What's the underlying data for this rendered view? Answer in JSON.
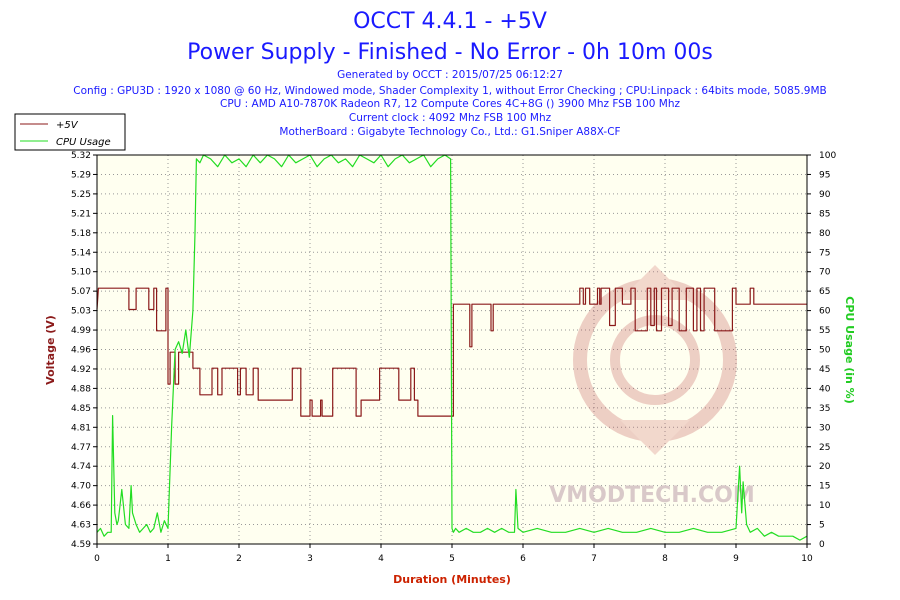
{
  "header": {
    "title": "OCCT 4.4.1 - +5V",
    "subtitle": "Power Supply - Finished - No Error - 0h 10m 00s",
    "info_lines": [
      "Generated by OCCT : 2015/07/25 06:12:27",
      "Config : GPU3D : 1920 x 1080 @ 60 Hz, Windowed mode, Shader Complexity 1, without Error Checking ; CPU:Linpack : 64bits mode, 5085.9MB",
      "CPU : AMD A10-7870K Radeon R7, 12 Compute Cores 4C+8G () 3900 Mhz FSB 100 Mhz",
      "Current clock : 4092 Mhz FSB 100 Mhz",
      "MotherBoard : Gigabyte Technology Co., Ltd.: G1.Sniper A88X-CF"
    ]
  },
  "watermark": "VMODTECH.COM",
  "colors": {
    "voltage": "#8b1a1a",
    "cpu": "#22dd22",
    "title": "#1a1aff",
    "plot_bg": "#fffff0",
    "x_label": "#cc2200"
  },
  "chart_data": {
    "type": "line",
    "xlabel": "Duration (Minutes)",
    "ylabel_left": "Voltage (V)",
    "ylabel_right": "CPU Usage (in %)",
    "xlim": [
      0,
      10
    ],
    "ylim_left": [
      4.59,
      5.32
    ],
    "ylim_right": [
      0,
      100
    ],
    "x_ticks": [
      "0",
      "1",
      "2",
      "3",
      "4",
      "5",
      "6",
      "7",
      "8",
      "9",
      "10"
    ],
    "y_ticks_left": [
      "4.59",
      "4.63",
      "4.66",
      "4.70",
      "4.74",
      "4.77",
      "4.81",
      "4.85",
      "4.88",
      "4.92",
      "4.96",
      "4.99",
      "5.03",
      "5.07",
      "5.10",
      "5.14",
      "5.18",
      "5.21",
      "5.25",
      "5.29",
      "5.32"
    ],
    "y_ticks_right": [
      "0",
      "5",
      "10",
      "15",
      "20",
      "25",
      "30",
      "35",
      "40",
      "45",
      "50",
      "55",
      "60",
      "65",
      "70",
      "75",
      "80",
      "85",
      "90",
      "95",
      "100"
    ],
    "grid": true,
    "legend_position": "top-left",
    "series": [
      {
        "name": "+5V",
        "axis": "left",
        "x": [
          0,
          0.02,
          0.1,
          0.1,
          0.45,
          0.45,
          0.55,
          0.55,
          0.73,
          0.73,
          0.8,
          0.8,
          0.84,
          0.84,
          0.97,
          0.97,
          1.0,
          1.0,
          1.03,
          1.03,
          1.1,
          1.1,
          1.15,
          1.15,
          1.35,
          1.35,
          1.45,
          1.45,
          1.62,
          1.62,
          1.7,
          1.7,
          1.76,
          1.76,
          1.98,
          1.98,
          2.02,
          2.02,
          2.1,
          2.1,
          2.2,
          2.2,
          2.27,
          2.27,
          2.48,
          2.48,
          2.55,
          2.55,
          2.75,
          2.75,
          2.87,
          2.87,
          3.0,
          3.0,
          3.03,
          3.03,
          3.15,
          3.15,
          3.17,
          3.17,
          3.32,
          3.32,
          3.65,
          3.65,
          3.72,
          3.72,
          3.98,
          3.98,
          4.02,
          4.02,
          4.25,
          4.25,
          4.3,
          4.3,
          4.42,
          4.42,
          4.47,
          4.47,
          4.52,
          4.52,
          4.97,
          4.97,
          5.02,
          5.02,
          5.05,
          5.05,
          5.25,
          5.25,
          5.28,
          5.28,
          5.3,
          5.3,
          5.55,
          5.55,
          5.58,
          5.58,
          6.8,
          6.8,
          6.85,
          6.85,
          6.88,
          6.88,
          6.94,
          6.94,
          6.97,
          6.97,
          7.05,
          7.05,
          7.08,
          7.08,
          7.1,
          7.1,
          7.22,
          7.22,
          7.3,
          7.3,
          7.4,
          7.4,
          7.52,
          7.52,
          7.58,
          7.58,
          7.75,
          7.75,
          7.8,
          7.8,
          7.85,
          7.85,
          7.88,
          7.88,
          7.95,
          7.95,
          8.05,
          8.05,
          8.1,
          8.1,
          8.2,
          8.2,
          8.3,
          8.3,
          8.4,
          8.4,
          8.45,
          8.45,
          8.5,
          8.5,
          8.55,
          8.55,
          8.7,
          8.7,
          8.95,
          8.95,
          9.0,
          9.0,
          9.2,
          9.2,
          9.25,
          9.25,
          10.0
        ],
        "values": [
          5.03,
          5.07,
          5.07,
          5.07,
          5.07,
          5.03,
          5.03,
          5.07,
          5.07,
          5.03,
          5.03,
          5.07,
          5.07,
          4.99,
          4.99,
          5.07,
          5.07,
          4.89,
          4.89,
          4.95,
          4.95,
          4.89,
          4.89,
          4.95,
          4.95,
          4.92,
          4.92,
          4.87,
          4.87,
          4.92,
          4.92,
          4.87,
          4.87,
          4.92,
          4.92,
          4.87,
          4.87,
          4.92,
          4.92,
          4.87,
          4.87,
          4.92,
          4.92,
          4.86,
          4.86,
          4.86,
          4.86,
          4.86,
          4.86,
          4.92,
          4.92,
          4.83,
          4.83,
          4.86,
          4.86,
          4.83,
          4.83,
          4.86,
          4.86,
          4.83,
          4.83,
          4.92,
          4.92,
          4.83,
          4.83,
          4.86,
          4.86,
          4.92,
          4.92,
          4.92,
          4.92,
          4.86,
          4.86,
          4.86,
          4.86,
          4.92,
          4.92,
          4.86,
          4.86,
          4.83,
          4.83,
          4.83,
          4.83,
          5.04,
          5.04,
          5.04,
          5.04,
          4.96,
          4.96,
          5.04,
          5.04,
          5.04,
          5.04,
          4.99,
          4.99,
          5.04,
          5.04,
          5.07,
          5.07,
          5.04,
          5.04,
          5.07,
          5.07,
          5.04,
          5.04,
          5.04,
          5.04,
          5.07,
          5.07,
          5.04,
          5.04,
          5.07,
          5.07,
          5.0,
          5.0,
          5.07,
          5.07,
          5.04,
          5.04,
          5.07,
          5.07,
          4.99,
          4.99,
          5.07,
          5.07,
          5.0,
          5.0,
          5.07,
          5.07,
          4.99,
          4.99,
          5.07,
          5.07,
          5.0,
          5.0,
          5.07,
          5.07,
          4.99,
          4.99,
          5.07,
          5.07,
          4.99,
          4.99,
          5.07,
          5.07,
          4.99,
          4.99,
          5.07,
          5.07,
          4.99,
          4.99,
          5.07,
          5.07,
          5.04,
          5.04,
          5.07,
          5.07,
          5.04,
          5.04
        ]
      },
      {
        "name": "CPU Usage",
        "axis": "right",
        "x": [
          0,
          0.05,
          0.1,
          0.15,
          0.2,
          0.22,
          0.25,
          0.28,
          0.3,
          0.35,
          0.4,
          0.45,
          0.48,
          0.5,
          0.55,
          0.6,
          0.65,
          0.7,
          0.75,
          0.8,
          0.85,
          0.9,
          0.95,
          1.0,
          1.05,
          1.1,
          1.15,
          1.2,
          1.25,
          1.3,
          1.35,
          1.38,
          1.4,
          1.45,
          1.5,
          1.6,
          1.7,
          1.8,
          1.9,
          2.0,
          2.1,
          2.2,
          2.3,
          2.4,
          2.5,
          2.6,
          2.7,
          2.8,
          2.9,
          3.0,
          3.1,
          3.2,
          3.3,
          3.4,
          3.5,
          3.6,
          3.7,
          3.8,
          3.9,
          4.0,
          4.1,
          4.2,
          4.3,
          4.4,
          4.5,
          4.6,
          4.7,
          4.8,
          4.9,
          4.98,
          5.0,
          5.02,
          5.05,
          5.1,
          5.2,
          5.3,
          5.4,
          5.5,
          5.6,
          5.7,
          5.8,
          5.88,
          5.9,
          5.93,
          6.0,
          6.2,
          6.4,
          6.6,
          6.8,
          7.0,
          7.2,
          7.4,
          7.6,
          7.8,
          8.0,
          8.2,
          8.4,
          8.6,
          8.8,
          9.0,
          9.05,
          9.08,
          9.1,
          9.15,
          9.2,
          9.3,
          9.4,
          9.5,
          9.6,
          9.7,
          9.8,
          9.9,
          10.0
        ],
        "values": [
          3,
          4,
          2,
          3,
          3,
          33,
          8,
          5,
          6,
          14,
          5,
          4,
          15,
          8,
          5,
          3,
          4,
          5,
          3,
          4,
          8,
          3,
          6,
          4,
          30,
          50,
          52,
          49,
          55,
          48,
          60,
          80,
          99,
          98,
          100,
          99,
          97,
          100,
          98,
          99,
          97,
          100,
          98,
          100,
          99,
          97,
          100,
          98,
          99,
          100,
          97,
          99,
          100,
          98,
          99,
          97,
          100,
          99,
          98,
          100,
          97,
          99,
          100,
          98,
          99,
          100,
          97,
          99,
          100,
          99,
          4,
          3,
          4,
          3,
          4,
          3,
          3,
          4,
          3,
          4,
          3,
          3,
          14,
          4,
          3,
          4,
          3,
          3,
          4,
          3,
          4,
          3,
          3,
          4,
          3,
          3,
          4,
          3,
          3,
          4,
          20,
          8,
          16,
          5,
          3,
          4,
          2,
          3,
          2,
          2,
          2,
          1,
          2
        ]
      }
    ]
  }
}
